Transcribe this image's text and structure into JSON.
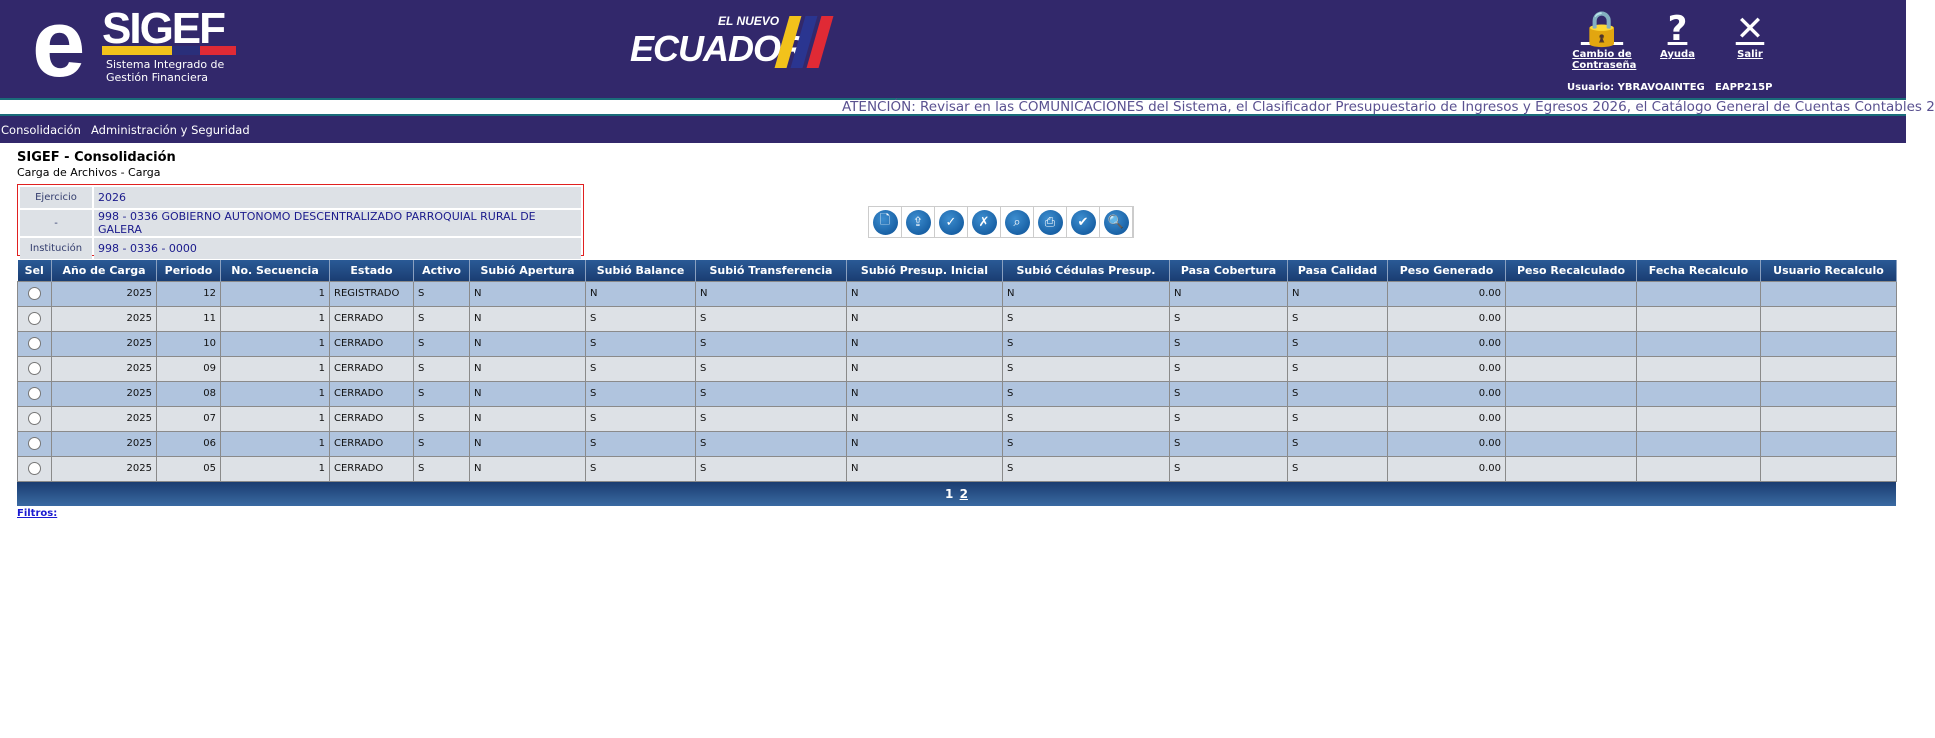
{
  "header": {
    "logo_text": "SIGEF",
    "logo_subtitle_1": "Sistema Integrado de",
    "logo_subtitle_2": "Gestión Financiera",
    "brand_top": "EL NUEVO",
    "brand_main": "ECUADOR",
    "buttons": [
      {
        "label": "Cambio de Contraseña",
        "icon": "lock-icon"
      },
      {
        "label": "Ayuda",
        "icon": "question-icon"
      },
      {
        "label": "Salir",
        "icon": "close-icon"
      }
    ],
    "user": "Usuario: YBRAVOAINTEG",
    "server": "EAPP215P",
    "colors": {
      "bg": "#32286b",
      "yellow": "#f2c21b",
      "blue": "#2a2f7a",
      "red": "#e02a35"
    }
  },
  "ticker": "ATENCIÓN: Revisar en las COMUNICACIONES del Sistema, el Clasificador Presupuestario de Ingresos y Egresos 2026, el Catálogo General de Cuentas Contables 2",
  "nav": [
    "Consolidación",
    "Administración y Seguridad"
  ],
  "page": {
    "title": "SIGEF - Consolidación",
    "subtitle": "Carga de Archivos - Carga"
  },
  "info": [
    {
      "label": "Ejercicio",
      "value": "2026"
    },
    {
      "label": "-",
      "value": "998 - 0336 GOBIERNO AUTONOMO DESCENTRALIZADO PARROQUIAL RURAL DE GALERA"
    },
    {
      "label": "Institución",
      "value": "998 - 0336 - 0000"
    }
  ],
  "toolbar": [
    "new-file-icon",
    "upload-icon",
    "validate-grid-icon",
    "delete-file-icon",
    "view-file-icon",
    "print-icon",
    "approve-icon",
    "search-icon"
  ],
  "table": {
    "columns": [
      "Sel",
      "Año de Carga",
      "Periodo",
      "No. Secuencia",
      "Estado",
      "Activo",
      "Subió Apertura",
      "Subió Balance",
      "Subió Transferencia",
      "Subió Presup. Inicial",
      "Subió Cédulas Presup.",
      "Pasa Cobertura",
      "Pasa Calidad",
      "Peso Generado",
      "Peso Recalculado",
      "Fecha Recalculo",
      "Usuario Recalculo"
    ],
    "rows": [
      [
        "",
        "2025",
        "12",
        "1",
        "REGISTRADO",
        "S",
        "N",
        "N",
        "N",
        "N",
        "N",
        "N",
        "N",
        "0.00",
        "",
        "",
        ""
      ],
      [
        "",
        "2025",
        "11",
        "1",
        "CERRADO",
        "S",
        "N",
        "S",
        "S",
        "N",
        "S",
        "S",
        "S",
        "0.00",
        "",
        "",
        ""
      ],
      [
        "",
        "2025",
        "10",
        "1",
        "CERRADO",
        "S",
        "N",
        "S",
        "S",
        "N",
        "S",
        "S",
        "S",
        "0.00",
        "",
        "",
        ""
      ],
      [
        "",
        "2025",
        "09",
        "1",
        "CERRADO",
        "S",
        "N",
        "S",
        "S",
        "N",
        "S",
        "S",
        "S",
        "0.00",
        "",
        "",
        ""
      ],
      [
        "",
        "2025",
        "08",
        "1",
        "CERRADO",
        "S",
        "N",
        "S",
        "S",
        "N",
        "S",
        "S",
        "S",
        "0.00",
        "",
        "",
        ""
      ],
      [
        "",
        "2025",
        "07",
        "1",
        "CERRADO",
        "S",
        "N",
        "S",
        "S",
        "N",
        "S",
        "S",
        "S",
        "0.00",
        "",
        "",
        ""
      ],
      [
        "",
        "2025",
        "06",
        "1",
        "CERRADO",
        "S",
        "N",
        "S",
        "S",
        "N",
        "S",
        "S",
        "S",
        "0.00",
        "",
        "",
        ""
      ],
      [
        "",
        "2025",
        "05",
        "1",
        "CERRADO",
        "S",
        "N",
        "S",
        "S",
        "N",
        "S",
        "S",
        "S",
        "0.00",
        "",
        "",
        ""
      ]
    ]
  },
  "pager": [
    "1",
    "2"
  ],
  "filters_label": "Filtros:"
}
